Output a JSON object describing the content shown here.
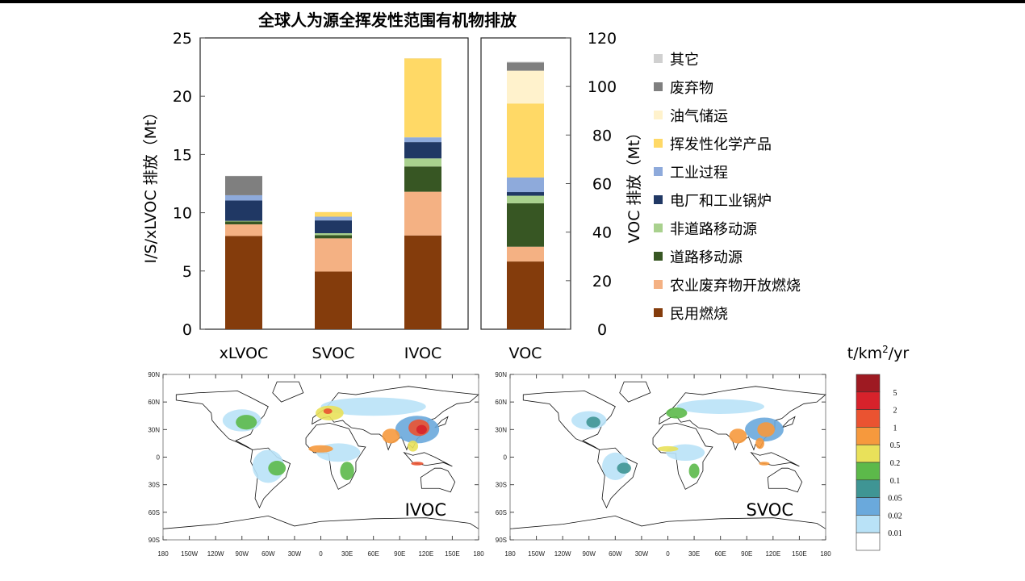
{
  "chart_data": [
    {
      "type": "bar",
      "stacked": true,
      "title": "全球人为源全挥发性范围有机物排放",
      "ylabel": "I/S/xLVOC 排放（Mt）",
      "ylim": [
        0,
        25
      ],
      "yticks": [
        0,
        5,
        10,
        15,
        20,
        25
      ],
      "categories": [
        "xLVOC",
        "SVOC",
        "IVOC"
      ],
      "series": [
        {
          "name": "民用燃烧",
          "color": "#843c0c",
          "values": [
            8.0,
            4.95,
            8.05
          ]
        },
        {
          "name": "农业废弃物开放燃烧",
          "color": "#f4b183",
          "values": [
            1.0,
            2.85,
            3.75
          ]
        },
        {
          "name": "道路移动源",
          "color": "#375623",
          "values": [
            0.25,
            0.28,
            2.17
          ]
        },
        {
          "name": "非道路移动源",
          "color": "#a9d18e",
          "values": [
            0.05,
            0.16,
            0.69
          ]
        },
        {
          "name": "电厂和工业锅炉",
          "color": "#203864",
          "values": [
            1.75,
            1.1,
            1.4
          ]
        },
        {
          "name": "工业过程",
          "color": "#8eaadb",
          "values": [
            0.45,
            0.32,
            0.41
          ]
        },
        {
          "name": "挥发性化学产品",
          "color": "#ffd966",
          "values": [
            0,
            0.39,
            6.77
          ]
        },
        {
          "name": "油气储运",
          "color": "#fff2cc",
          "values": [
            0,
            0,
            0.01
          ]
        },
        {
          "name": "废弃物",
          "color": "#7f7f7f",
          "values": [
            1.65,
            0,
            0
          ]
        },
        {
          "name": "其它",
          "color": "#d0d0d0",
          "values": [
            0.02,
            0.01,
            0.01
          ]
        }
      ],
      "grid": false
    },
    {
      "type": "bar",
      "stacked": true,
      "ylabel": "VOC 排放（Mt）",
      "ylim": [
        0,
        120
      ],
      "yticks": [
        0,
        20,
        40,
        60,
        80,
        100,
        120
      ],
      "categories": [
        "VOC"
      ],
      "series": [
        {
          "name": "民用燃烧",
          "color": "#843c0c",
          "values": [
            27.9
          ]
        },
        {
          "name": "农业废弃物开放燃烧",
          "color": "#f4b183",
          "values": [
            6.1
          ]
        },
        {
          "name": "道路移动源",
          "color": "#375623",
          "values": [
            17.9
          ]
        },
        {
          "name": "非道路移动源",
          "color": "#a9d18e",
          "values": [
            3.1
          ]
        },
        {
          "name": "电厂和工业锅炉",
          "color": "#203864",
          "values": [
            1.5
          ]
        },
        {
          "name": "工业过程",
          "color": "#8eaadb",
          "values": [
            6.0
          ]
        },
        {
          "name": "挥发性化学产品",
          "color": "#ffd966",
          "values": [
            30.5
          ]
        },
        {
          "name": "油气储运",
          "color": "#fff2cc",
          "values": [
            13.5
          ]
        },
        {
          "name": "废弃物",
          "color": "#7f7f7f",
          "values": [
            3.4
          ]
        },
        {
          "name": "其它",
          "color": "#d0d0d0",
          "values": [
            0.3
          ]
        }
      ],
      "grid": false
    }
  ],
  "legend": {
    "placement": "right",
    "items": [
      "其它",
      "废弃物",
      "油气储运",
      "挥发性化学产品",
      "工业过程",
      "电厂和工业锅炉",
      "非道路移动源",
      "道路移动源",
      "农业废弃物开放燃烧",
      "民用燃烧"
    ]
  },
  "maps": {
    "panels": [
      {
        "label": "IVOC"
      },
      {
        "label": "SVOC"
      }
    ],
    "lat_labels": [
      "90N",
      "60N",
      "30N",
      "0",
      "30S",
      "60S",
      "90S"
    ],
    "lon_labels": [
      "180",
      "150W",
      "120W",
      "90W",
      "60W",
      "30W",
      "0",
      "30E",
      "60E",
      "90E",
      "120E",
      "150E",
      "180"
    ],
    "colorbar": {
      "unit_prefix": "t/km",
      "unit_sup": "2",
      "unit_suffix": "/yr",
      "levels": [
        "5",
        "2",
        "1",
        "0.5",
        "0.2",
        "0.1",
        "0.05",
        "0.02",
        "0.01"
      ],
      "colors": [
        "#9e1a22",
        "#d7222b",
        "#ea5331",
        "#f6993d",
        "#e9e15a",
        "#5cb94a",
        "#3f9594",
        "#6aa9dc",
        "#b9e2f7",
        "#ffffff"
      ]
    }
  }
}
